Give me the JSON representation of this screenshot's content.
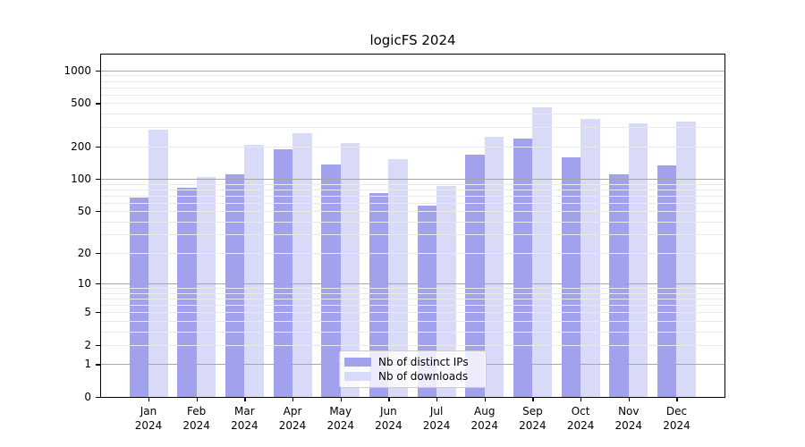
{
  "title": "logicFS 2024",
  "chart_data": {
    "type": "bar",
    "title": "logicFS 2024",
    "categories": [
      "Jan 2024",
      "Feb 2024",
      "Mar 2024",
      "Apr 2024",
      "May 2024",
      "Jun 2024",
      "Jul 2024",
      "Aug 2024",
      "Sep 2024",
      "Oct 2024",
      "Nov 2024",
      "Dec 2024"
    ],
    "series": [
      {
        "name": "Nb of distinct IPs",
        "color": "#a1a1ed",
        "values": [
          67,
          83,
          110,
          186,
          136,
          74,
          56,
          166,
          235,
          157,
          110,
          132
        ]
      },
      {
        "name": "Nb of downloads",
        "color": "#d9d9f8",
        "values": [
          286,
          103,
          205,
          264,
          216,
          153,
          86,
          247,
          460,
          358,
          323,
          340
        ]
      }
    ],
    "yscale": "log1p",
    "ylim": [
      0,
      1400
    ],
    "yticks": [
      0,
      1,
      2,
      5,
      10,
      20,
      50,
      100,
      200,
      500,
      1000
    ],
    "major_gridlines": [
      1,
      10,
      100,
      1000
    ],
    "minor_gridlines": [
      2,
      3,
      4,
      5,
      6,
      7,
      8,
      9,
      20,
      30,
      40,
      50,
      60,
      70,
      80,
      90,
      200,
      300,
      400,
      500,
      600,
      700,
      800,
      900
    ],
    "grid": "y-major-and-minor",
    "legend_position": "lower center",
    "colors": {
      "axis": "#000000",
      "major_grid": "#a6a6a6",
      "minor_grid": "#e9e9e9",
      "background": "#ffffff"
    }
  }
}
